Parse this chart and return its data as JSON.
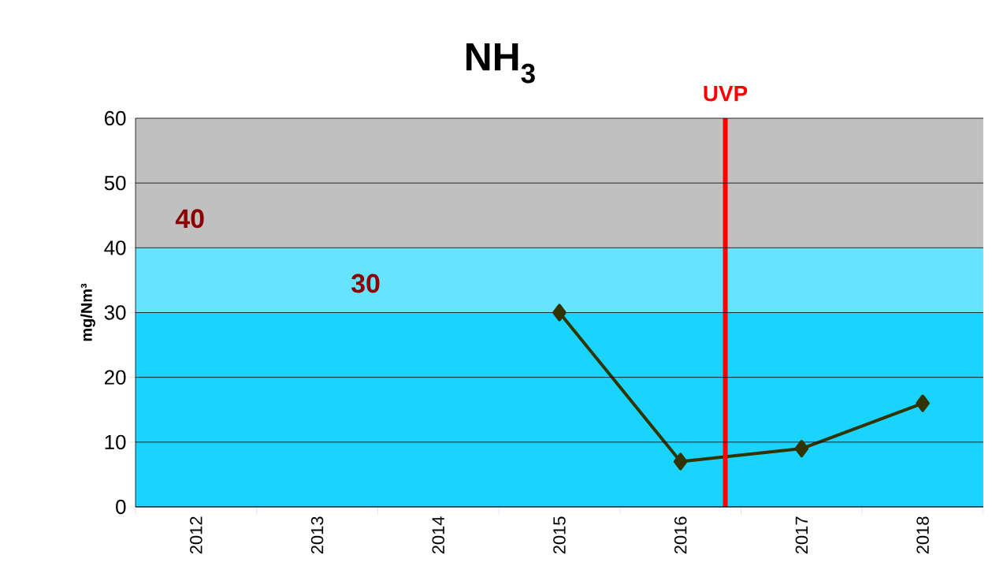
{
  "chart_data": {
    "type": "line",
    "title": "NH$_{3}$",
    "ylabel": "mg/Nm³",
    "x": [
      2015,
      2016,
      2017,
      2018
    ],
    "values": [
      30,
      7,
      9,
      16
    ],
    "color": "#333300",
    "marker": "diamond",
    "line_style": "solid",
    "xlim": [
      2011.5,
      2018.5
    ],
    "xticks": [
      2012,
      2013,
      2014,
      2015,
      2016,
      2017,
      2018
    ],
    "ylim": [
      0,
      60
    ],
    "yticks": [
      0,
      10,
      20,
      30,
      40,
      50,
      60
    ],
    "grid": "y",
    "bands": [
      {
        "axis": "y",
        "from": 40,
        "to": 60,
        "label": "40",
        "color": "#c0c0c0"
      },
      {
        "axis": "y",
        "from": 30,
        "to": 40,
        "label": "30",
        "color": "#66e3ff"
      },
      {
        "axis": "y",
        "from": 0,
        "to": 30,
        "color": "#1ad4fd"
      }
    ],
    "ref_lines": [
      {
        "axis": "x",
        "value": 2016.37,
        "label": "UVP",
        "color": "#ff0000"
      }
    ]
  }
}
